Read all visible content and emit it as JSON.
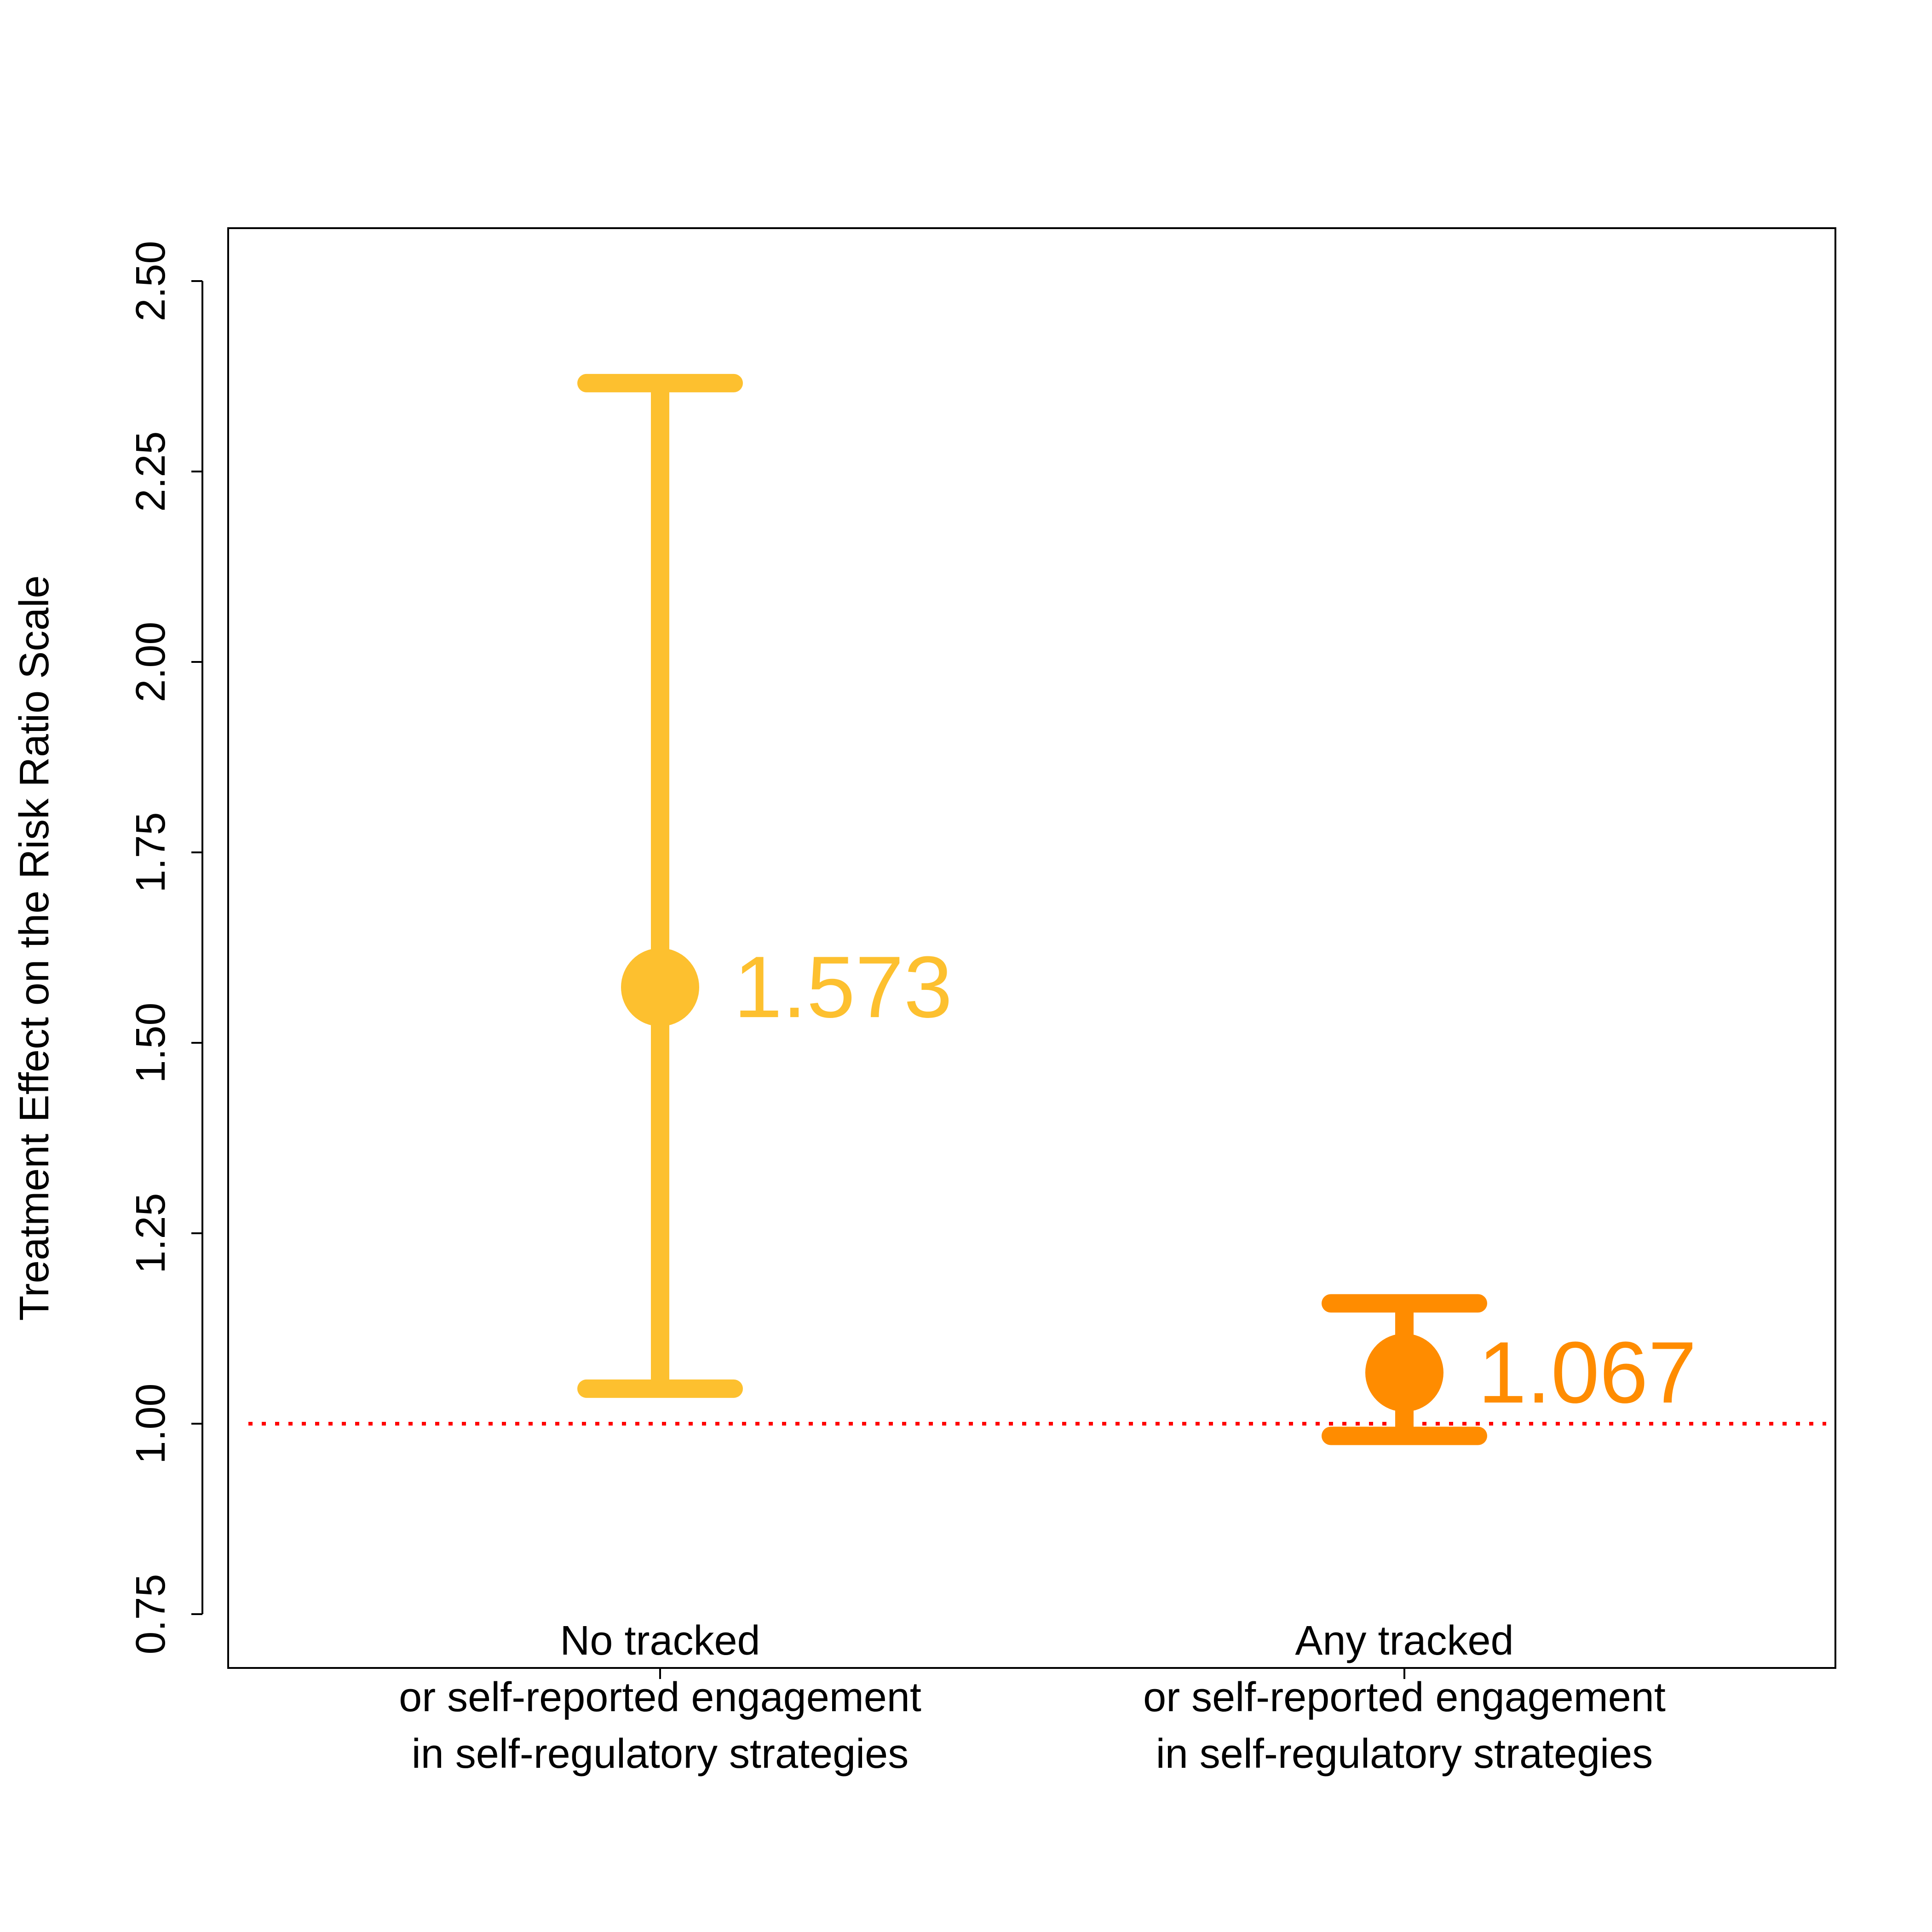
{
  "chart_data": {
    "type": "scatter",
    "title": "",
    "xlabel": "",
    "ylabel": "Treatment Effect on the Risk Ratio Scale",
    "ylim": [
      0.72,
      2.57
    ],
    "yticks": [
      0.75,
      1.0,
      1.25,
      1.5,
      1.75,
      2.0,
      2.25,
      2.5
    ],
    "ytick_labels": [
      "0.75",
      "1.00",
      "1.25",
      "1.50",
      "1.75",
      "2.00",
      "2.25",
      "2.50"
    ],
    "reference_line": {
      "y": 1.0,
      "color": "#ff0000",
      "style": "dotted"
    },
    "grid": false,
    "legend": "none",
    "categories": [
      [
        "No tracked",
        "or self-reported engagement",
        "in self-regulatory strategies"
      ],
      [
        "Any tracked",
        "or self-reported engagement",
        "in self-regulatory strategies"
      ]
    ],
    "series": [
      {
        "estimate": 1.573,
        "lower": 1.046,
        "upper": 2.366,
        "label": "1.573",
        "color": "#fdc02f"
      },
      {
        "estimate": 1.067,
        "lower": 0.984,
        "upper": 1.158,
        "label": "1.067",
        "color": "#ff8c00"
      }
    ]
  }
}
